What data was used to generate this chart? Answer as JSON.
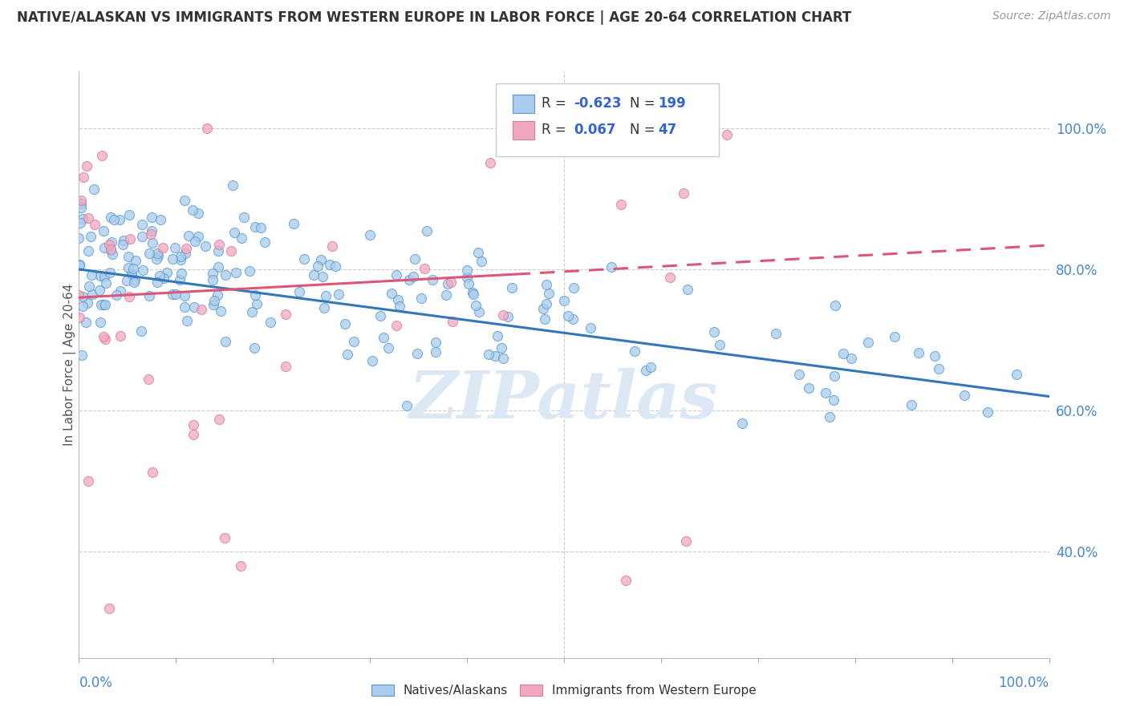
{
  "title": "NATIVE/ALASKAN VS IMMIGRANTS FROM WESTERN EUROPE IN LABOR FORCE | AGE 20-64 CORRELATION CHART",
  "source": "Source: ZipAtlas.com",
  "ylabel": "In Labor Force | Age 20-64",
  "ylabel_right_ticks": [
    "40.0%",
    "60.0%",
    "80.0%",
    "100.0%"
  ],
  "ylabel_right_values": [
    0.4,
    0.6,
    0.8,
    1.0
  ],
  "legend_label_blue": "Natives/Alaskans",
  "legend_label_pink": "Immigrants from Western Europe",
  "blue_color": "#aaccee",
  "pink_color": "#f0a8c0",
  "blue_edge_color": "#5599cc",
  "pink_edge_color": "#dd7799",
  "blue_line_color": "#3377bb",
  "pink_line_color": "#dd5577",
  "watermark": "ZIPatlas",
  "xlim": [
    0.0,
    1.0
  ],
  "ylim": [
    0.25,
    1.08
  ],
  "blue_line_x0": 0.0,
  "blue_line_y0": 0.8,
  "blue_line_x1": 1.0,
  "blue_line_y1": 0.62,
  "pink_line_solid_x0": 0.0,
  "pink_line_solid_y0": 0.76,
  "pink_line_solid_x1": 0.45,
  "pink_line_solid_y1": 0.793,
  "pink_line_dash_x0": 0.45,
  "pink_line_dash_y0": 0.793,
  "pink_line_dash_x1": 1.0,
  "pink_line_dash_y1": 0.834
}
